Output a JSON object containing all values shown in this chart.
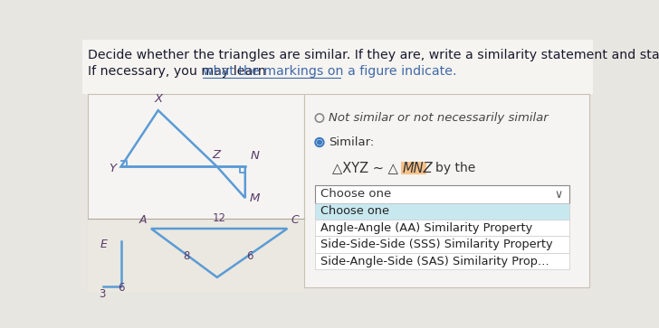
{
  "bg_color": "#e8e6e0",
  "panel_bg": "#f5f4f0",
  "header_text1": "Decide whether the triangles are similar. If they are, write a similarity statement and state the",
  "header_text2_prefix": "If necessary, you may learn ",
  "header_link": "what the markings on a figure indicate",
  "header_fontsize": 10.5,
  "text_color": "#1a1a2e",
  "link_color": "#4169aa",
  "tri_color": "#5b9bd5",
  "label_color": "#5a3a6a",
  "option1_text": "Not similar or not necessarily similar",
  "option2_text": "Similar:",
  "sim_left": "△XYZ ∼ △",
  "sim_mnz": "MNZ",
  "mnz_highlight": "#f5c28a",
  "by_the_text": "by the",
  "dropdown_header": "Choose one",
  "dropdown_options": [
    "Choose one",
    "Angle-Angle (AA) Similarity Property",
    "Side-Side-Side (SSS) Similarity Property",
    "Side-Angle-Side (SAS) Similarity Prop…"
  ],
  "dropdown_highlight": "#c8e8f0",
  "radio_color": "#3a7abf",
  "panel_border": "#c0b8a8"
}
